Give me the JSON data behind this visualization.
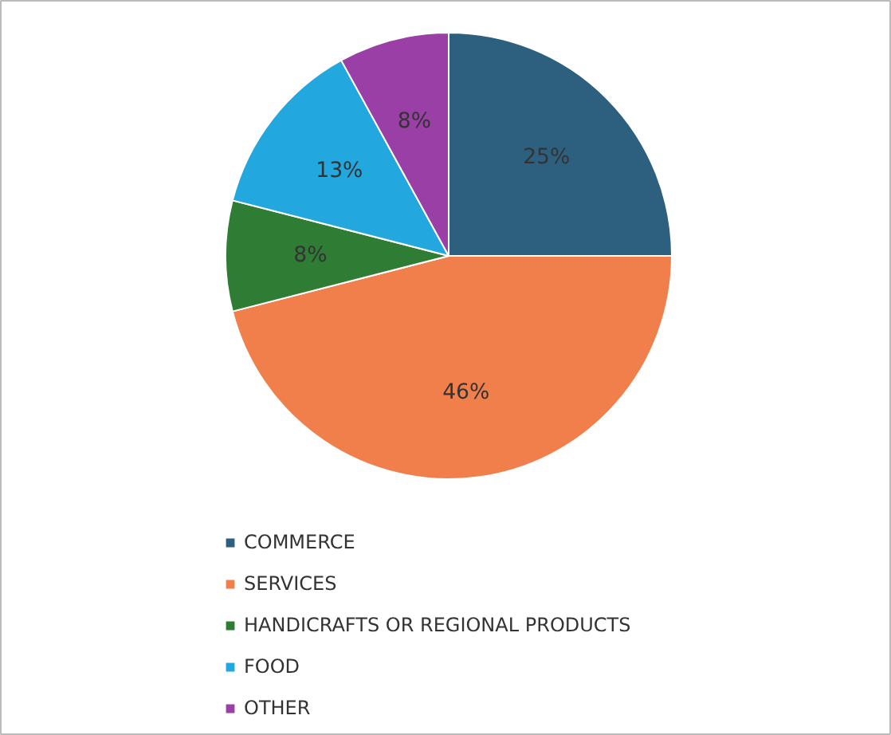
{
  "chart_data": {
    "type": "pie",
    "categories": [
      "COMMERCE",
      "SERVICES",
      "HANDICRAFTS OR REGIONAL PRODUCTS",
      "FOOD",
      "OTHER"
    ],
    "values": [
      25,
      46,
      8,
      13,
      8
    ],
    "colors": [
      "#2d5f7e",
      "#f07f4b",
      "#2f7d34",
      "#22a7df",
      "#9a3fa5"
    ],
    "value_labels": [
      "25%",
      "46%",
      "8%",
      "13%",
      "8%"
    ],
    "legend": "bottom"
  }
}
